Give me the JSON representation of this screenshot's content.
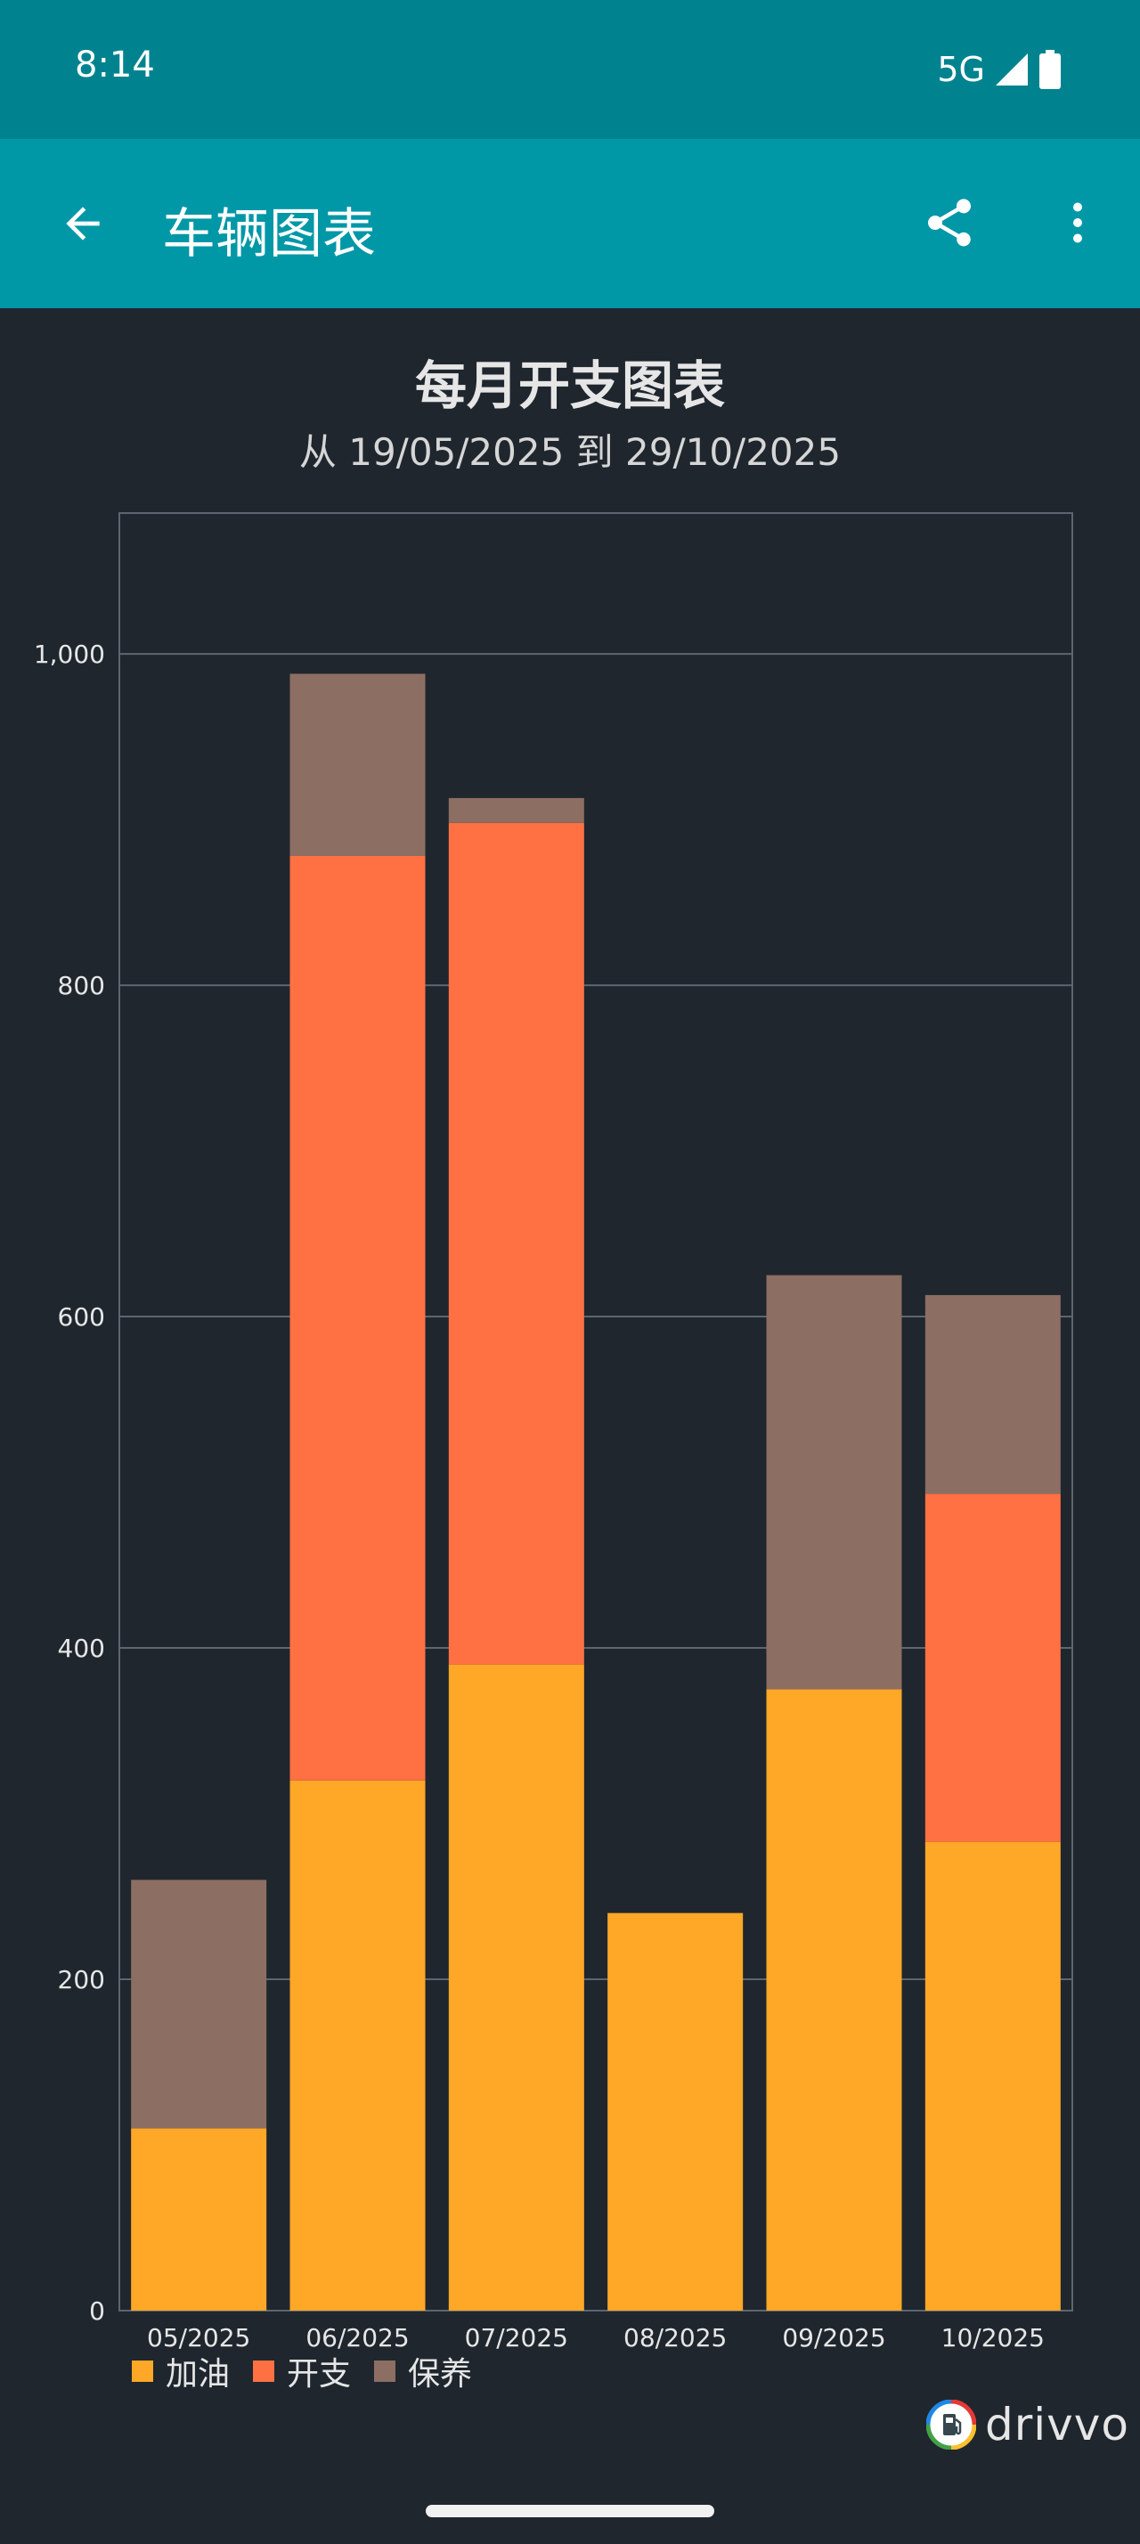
{
  "status_bar": {
    "time": "8:14",
    "network": "5G"
  },
  "app_bar": {
    "title": "车辆图表",
    "back_icon": "arrow-back-icon",
    "share_icon": "share-icon",
    "more_icon": "more-vert-icon"
  },
  "chart_data": {
    "type": "bar",
    "stacked": true,
    "title": "每月开支图表",
    "subtitle": "从 19/05/2025 到 29/10/2025",
    "categories": [
      "05/2025",
      "06/2025",
      "07/2025",
      "08/2025",
      "09/2025",
      "10/2025"
    ],
    "series": [
      {
        "name": "加油",
        "color": "#ffa726",
        "values": [
          110,
          320,
          390,
          240,
          375,
          283
        ]
      },
      {
        "name": "开支",
        "color": "#ff7043",
        "values": [
          0,
          558,
          508,
          0,
          0,
          210
        ]
      },
      {
        "name": "保养",
        "color": "#8d6e63",
        "values": [
          150,
          110,
          15,
          0,
          250,
          120
        ]
      }
    ],
    "ylim": [
      0,
      1085
    ],
    "yticks": [
      0,
      200,
      400,
      600,
      800,
      1000
    ],
    "ytick_labels": [
      "0",
      "200",
      "400",
      "600",
      "800",
      "1,000"
    ],
    "grid": true,
    "legend": "bottom-left"
  },
  "brand": {
    "name": "drivvo"
  }
}
